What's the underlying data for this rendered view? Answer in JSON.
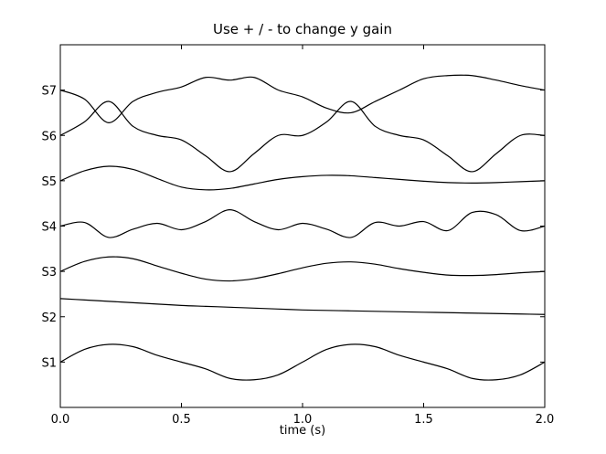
{
  "chart_data": {
    "type": "line",
    "title": "Use + / - to change y gain",
    "xlabel": "time (s)",
    "ylabel": "",
    "xlim": [
      0.0,
      2.0
    ],
    "ylim": [
      0,
      8
    ],
    "grid": false,
    "x_ticks": [
      0.0,
      0.5,
      1.0,
      1.5,
      2.0
    ],
    "x_tick_labels": [
      "0.0",
      "0.5",
      "1.0",
      "1.5",
      "2.0"
    ],
    "y_ticks": [
      1,
      2,
      3,
      4,
      5,
      6,
      7
    ],
    "y_tick_labels": [
      "S1",
      "S2",
      "S3",
      "S4",
      "S5",
      "S6",
      "S7"
    ],
    "x": [
      0.0,
      0.1,
      0.2,
      0.3,
      0.4,
      0.5,
      0.6,
      0.7,
      0.8,
      0.9,
      1.0,
      1.1,
      1.2,
      1.3,
      1.4,
      1.5,
      1.6,
      1.7,
      1.8,
      1.9,
      2.0
    ],
    "series": [
      {
        "values": [
          1.0,
          1.28,
          1.39,
          1.34,
          1.15,
          1.0,
          0.85,
          0.64,
          0.61,
          0.72,
          1.0,
          1.28,
          1.39,
          1.34,
          1.15,
          1.0,
          0.85,
          0.64,
          0.61,
          0.72,
          1.0
        ]
      },
      {
        "values": [
          2.4,
          2.37,
          2.34,
          2.31,
          2.28,
          2.25,
          2.23,
          2.21,
          2.19,
          2.17,
          2.15,
          2.14,
          2.13,
          2.12,
          2.11,
          2.1,
          2.09,
          2.08,
          2.07,
          2.06,
          2.05
        ]
      },
      {
        "values": [
          3.0,
          3.22,
          3.32,
          3.28,
          3.12,
          2.96,
          2.83,
          2.79,
          2.84,
          2.95,
          3.08,
          3.18,
          3.21,
          3.16,
          3.06,
          2.98,
          2.92,
          2.91,
          2.93,
          2.97,
          3.0
        ]
      },
      {
        "values": [
          4.0,
          4.08,
          3.75,
          3.93,
          4.06,
          3.92,
          4.1,
          4.36,
          4.1,
          3.92,
          4.06,
          3.93,
          3.75,
          4.08,
          4.0,
          4.1,
          3.9,
          4.3,
          4.25,
          3.9,
          4.0
        ]
      },
      {
        "values": [
          5.0,
          5.22,
          5.32,
          5.25,
          5.05,
          4.86,
          4.8,
          4.83,
          4.93,
          5.03,
          5.09,
          5.12,
          5.11,
          5.07,
          5.03,
          4.99,
          4.96,
          4.95,
          4.96,
          4.98,
          5.0
        ]
      },
      {
        "values": [
          6.0,
          6.3,
          6.75,
          6.2,
          6.0,
          5.9,
          5.55,
          5.2,
          5.6,
          6.0,
          6.0,
          6.3,
          6.75,
          6.2,
          6.0,
          5.9,
          5.55,
          5.2,
          5.6,
          6.0,
          6.0
        ]
      },
      {
        "values": [
          7.0,
          6.8,
          6.28,
          6.75,
          6.95,
          7.07,
          7.28,
          7.22,
          7.28,
          7.0,
          6.85,
          6.6,
          6.5,
          6.75,
          7.0,
          7.25,
          7.32,
          7.32,
          7.22,
          7.1,
          7.0
        ]
      }
    ]
  }
}
